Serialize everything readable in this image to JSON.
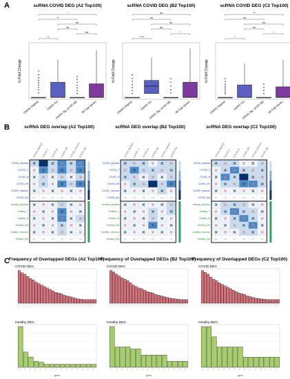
{
  "panel_labels": [
    "A",
    "B",
    "C"
  ],
  "colors": {
    "box_blue": "#5a5fc0",
    "box_purple": "#7c3a9c",
    "heat_dark": "#08306b",
    "heat_mid": "#4a89c8",
    "heat_light": "#c6dbef",
    "heat_pale": "#eef4fb",
    "x_mark": "#444444",
    "dot_mark": "#e07a7a",
    "bar_red": "#d9707a",
    "bar_green": "#a6cf6a",
    "covid_label": "#2244aa",
    "healthy_label": "#2e8b2e"
  },
  "chart_data": [
    {
      "id": "A1",
      "type": "box",
      "title": "scRNA COVID DEG (A2 Top100)",
      "ylabel": "ln Fold Change",
      "categories": [
        "GWAS Original",
        "GWAS Cis",
        "GWAS Sig. (p<5E-08)",
        "All Trait Genes"
      ],
      "boxes": [
        {
          "q1": 0,
          "median": 0,
          "q3": 0,
          "whisker_high": 0,
          "outliers": [
            0.12,
            0.2,
            0.27,
            0.33,
            0.39,
            0.45,
            0.52,
            0.6,
            0.7
          ]
        },
        {
          "q1": 0,
          "median": 0,
          "q3": 0.4,
          "whisker_high": 1.0,
          "outliers": []
        },
        {
          "q1": 0,
          "median": 0,
          "q3": 0,
          "whisker_high": 0,
          "outliers": [
            0.1,
            0.18,
            0.25,
            0.32,
            0.4,
            0.48,
            0.55
          ]
        },
        {
          "q1": 0,
          "median": 0,
          "q3": 0.36,
          "whisker_high": 1.25,
          "outliers": []
        }
      ],
      "brackets": [
        "**",
        "ns",
        "ns",
        "ns",
        "**",
        "*"
      ]
    },
    {
      "id": "A2",
      "type": "box",
      "title": "scRNA COVID DEG (B2 Top100)",
      "ylabel": "ln Fold Change",
      "categories": [
        "GWAS Original",
        "GWAS Cis",
        "GWAS Sig. (p<5E-08)",
        "All Trait Genes"
      ],
      "boxes": [
        {
          "q1": 0,
          "median": 0,
          "q3": 0,
          "whisker_high": 0,
          "outliers": [
            0.1,
            0.18,
            0.26,
            0.34,
            0.42,
            0.5,
            0.6
          ]
        },
        {
          "q1": 0.1,
          "median": 0.3,
          "q3": 0.45,
          "whisker_high": 1.05,
          "outliers": []
        },
        {
          "q1": 0,
          "median": 0,
          "q3": 0,
          "whisker_high": 0,
          "outliers": [
            0.12,
            0.2,
            0.3,
            0.4,
            0.5
          ]
        },
        {
          "q1": 0,
          "median": 0,
          "q3": 0.4,
          "whisker_high": 1.3,
          "outliers": []
        }
      ],
      "brackets": [
        "****",
        "*",
        "ns",
        "ns",
        "ns",
        "ns"
      ]
    },
    {
      "id": "A3",
      "type": "box",
      "title": "scRNA COVID DEG (C2 Top100)",
      "ylabel": "ln Fold Change",
      "categories": [
        "GWAS Original",
        "GWAS Cis",
        "GWAS Sig. (p<5E-08)",
        "All Trait Genes"
      ],
      "boxes": [
        {
          "q1": 0,
          "median": 0,
          "q3": 0,
          "whisker_high": 0,
          "outliers": [
            0.1,
            0.15,
            0.2,
            0.25,
            0.3,
            0.35,
            0.42,
            0.5
          ]
        },
        {
          "q1": 0,
          "median": 0,
          "q3": 0.33,
          "whisker_high": 0.9,
          "outliers": []
        },
        {
          "q1": 0,
          "median": 0,
          "q3": 0,
          "whisker_high": 0,
          "outliers": [
            0.1,
            0.18,
            0.26,
            0.35
          ]
        },
        {
          "q1": 0,
          "median": 0,
          "q3": 0.28,
          "whisker_high": 1.0,
          "outliers": []
        }
      ],
      "brackets": [
        "*",
        "*",
        "ns",
        "ns",
        "ns",
        "**"
      ]
    },
    {
      "id": "B1",
      "type": "heatmap",
      "title": "scRNA DEG overlap (A2 Top100)",
      "covid_rows": [
        "COVID_Myeloid",
        "COVID_T",
        "COVID_B",
        "COVID_NK",
        "COVID_Immune",
        "COVID_Epi"
      ],
      "healthy_rows": [
        "Healthy_Myeloid",
        "Healthy_T",
        "Healthy_B",
        "Healthy_NK",
        "Healthy_Immune",
        "Healthy_Epi"
      ],
      "covid_values": [
        [
          2,
          4,
          2,
          3,
          2,
          3
        ],
        [
          1,
          3,
          2,
          3,
          2,
          3
        ],
        [
          1,
          2,
          1,
          2,
          1,
          2
        ],
        [
          1,
          2,
          1,
          3,
          2,
          3
        ],
        [
          1,
          1,
          1,
          1,
          1,
          1
        ],
        [
          0,
          0,
          0,
          0,
          0,
          0
        ]
      ],
      "healthy_values": [
        [
          1,
          1,
          1,
          2,
          1,
          1
        ],
        [
          1,
          1,
          1,
          3,
          1,
          1
        ],
        [
          1,
          1,
          1,
          3,
          1,
          2
        ],
        [
          1,
          1,
          1,
          2,
          1,
          1
        ],
        [
          1,
          1,
          1,
          2,
          1,
          1
        ],
        [
          0,
          0,
          0,
          0,
          0,
          0
        ]
      ]
    },
    {
      "id": "B2",
      "type": "heatmap",
      "title": "scRNA DEG overlap (B2 Top100)",
      "covid_rows": [
        "COVID_Myeloid",
        "COVID_T",
        "COVID_B",
        "COVID_NK",
        "COVID_Immune",
        "COVID_Epi"
      ],
      "healthy_rows": [
        "Healthy_Myeloid",
        "Healthy_T",
        "Healthy_B",
        "Healthy_NK",
        "Healthy_Immune",
        "Healthy_Epi"
      ],
      "covid_values": [
        [
          2,
          2,
          2,
          1,
          2,
          2
        ],
        [
          2,
          3,
          2,
          2,
          2,
          2
        ],
        [
          2,
          2,
          1,
          2,
          1,
          2
        ],
        [
          1,
          2,
          2,
          4,
          2,
          3
        ],
        [
          1,
          1,
          1,
          1,
          2,
          1
        ],
        [
          0,
          0,
          0,
          0,
          0,
          0
        ]
      ],
      "healthy_values": [
        [
          1,
          1,
          1,
          1,
          1,
          2
        ],
        [
          1,
          1,
          1,
          2,
          1,
          2
        ],
        [
          1,
          1,
          1,
          2,
          1,
          1
        ],
        [
          1,
          1,
          1,
          3,
          1,
          1
        ],
        [
          1,
          1,
          1,
          1,
          1,
          1
        ],
        [
          0,
          0,
          0,
          0,
          0,
          0
        ]
      ]
    },
    {
      "id": "B3",
      "type": "heatmap",
      "title": "scRNA DEG overlap (C2 Top100)",
      "covid_rows": [
        "COVID_Myeloid",
        "COVID_T",
        "COVID_B",
        "COVID_NK",
        "COVID_Immune",
        "COVID_Epi"
      ],
      "healthy_rows": [
        "Healthy_Myeloid",
        "Healthy_T",
        "Healthy_B",
        "Healthy_NK",
        "Healthy_Immune",
        "Healthy_Epi"
      ],
      "covid_values": [
        [
          2,
          2,
          2,
          1,
          1,
          2
        ],
        [
          1,
          2,
          3,
          2,
          2,
          2
        ],
        [
          1,
          3,
          2,
          4,
          2,
          2
        ],
        [
          1,
          2,
          2,
          3,
          3,
          2
        ],
        [
          1,
          1,
          1,
          1,
          1,
          1
        ],
        [
          0,
          0,
          0,
          0,
          0,
          0
        ]
      ],
      "healthy_values": [
        [
          1,
          2,
          2,
          2,
          1,
          1
        ],
        [
          1,
          2,
          3,
          2,
          2,
          1
        ],
        [
          1,
          1,
          2,
          3,
          2,
          1
        ],
        [
          1,
          1,
          2,
          2,
          3,
          1
        ],
        [
          1,
          1,
          1,
          2,
          2,
          1
        ],
        [
          0,
          0,
          0,
          0,
          0,
          0
        ]
      ]
    },
    {
      "id": "C1",
      "type": "bar",
      "title": "Frequency of Overlapped DEGs (A2 Top100)",
      "covid_label": "COVID DEG",
      "healthy_label": "Healthy DEG",
      "xlabel": "gene",
      "covid_values": [
        9,
        8.4,
        8,
        7.4,
        6.8,
        6.4,
        5.8,
        5.4,
        5,
        4.6,
        4.2,
        3.8,
        3.4,
        3,
        2.8,
        2.6,
        2.2,
        2,
        1.8,
        1.6,
        1.4,
        1.2,
        1.1,
        1,
        1,
        1,
        1,
        1
      ],
      "healthy_values": [
        4,
        1.5,
        1,
        0.6,
        0.5,
        0.3,
        0.3,
        0.3,
        0.3,
        0.3,
        0.3,
        0.3,
        0.3,
        0.3,
        0.3
      ]
    },
    {
      "id": "C2",
      "type": "bar",
      "title": "Frequency of Overlapped DEGs (B2 Top100)",
      "covid_label": "COVID DEG",
      "healthy_label": "Healthy DEG",
      "xlabel": "gene",
      "covid_values": [
        9,
        8.6,
        8,
        7.5,
        7,
        6.6,
        6.2,
        5.6,
        5,
        4.6,
        4.2,
        4,
        3.6,
        3.2,
        3,
        2.8,
        2.4,
        2.2,
        2,
        1.8,
        1.6,
        1.4,
        1.3,
        1.2,
        1.1,
        1,
        1,
        1
      ],
      "healthy_values": [
        4,
        2,
        2,
        2,
        1.8,
        1.8,
        1.2,
        1.2,
        1.2,
        1.2,
        1.2,
        0.6,
        0.6,
        0.6,
        0.6
      ]
    },
    {
      "id": "C3",
      "type": "bar",
      "title": "Frequency of Overlapped DEGs (C2 Top100)",
      "covid_label": "COVID DEG",
      "healthy_label": "Healthy DEG",
      "xlabel": "gene",
      "covid_values": [
        9,
        8.5,
        8,
        7.2,
        6.6,
        6.2,
        5.6,
        5.2,
        4.8,
        4.4,
        4,
        3.6,
        3.2,
        2.8,
        2.6,
        2.4,
        2,
        1.8,
        1.6,
        1.4,
        1.3,
        1.2,
        1.1,
        1,
        1,
        1,
        1,
        1
      ],
      "healthy_values": [
        4,
        4,
        3,
        2,
        2,
        2,
        2,
        2,
        1,
        1,
        1,
        1,
        1,
        1,
        1
      ]
    }
  ]
}
